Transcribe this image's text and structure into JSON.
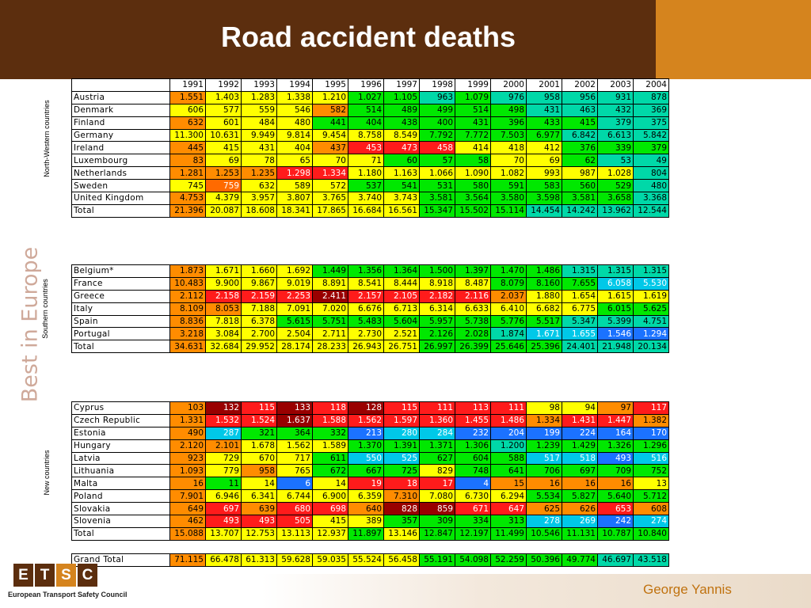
{
  "title": "Road accident deaths",
  "side_text": "Best in Europe",
  "footer": {
    "author": "George Yannis",
    "logo_letters": [
      "E",
      "T",
      "S",
      "C"
    ],
    "logo_caption": "European Transport Safety Council"
  },
  "years": [
    "1991",
    "1992",
    "1993",
    "1994",
    "1995",
    "1996",
    "1997",
    "1998",
    "1999",
    "2000",
    "2001",
    "2002",
    "2003",
    "2004"
  ],
  "groups": [
    {
      "label": "North-Western countries",
      "rows": [
        {
          "name": "Austria",
          "values": [
            "1.551",
            "1.403",
            "1.283",
            "1.338",
            "1.210",
            "1.027",
            "1.105",
            "963",
            "1.079",
            "976",
            "958",
            "956",
            "931",
            "878"
          ],
          "colors": [
            "o",
            "y",
            "y",
            "y",
            "y",
            "g",
            "g",
            "G",
            "g",
            "G",
            "G",
            "G",
            "G",
            "G"
          ]
        },
        {
          "name": "Denmark",
          "values": [
            "606",
            "577",
            "559",
            "546",
            "582",
            "514",
            "489",
            "499",
            "514",
            "498",
            "431",
            "463",
            "432",
            "369"
          ],
          "colors": [
            "y",
            "y",
            "y",
            "y",
            "o",
            "g",
            "g",
            "g",
            "g",
            "g",
            "G",
            "G",
            "G",
            "G"
          ]
        },
        {
          "name": "Finland",
          "values": [
            "632",
            "601",
            "484",
            "480",
            "441",
            "404",
            "438",
            "400",
            "431",
            "396",
            "433",
            "415",
            "379",
            "375"
          ],
          "colors": [
            "o",
            "y",
            "y",
            "y",
            "g",
            "g",
            "g",
            "g",
            "g",
            "g",
            "g",
            "g",
            "G",
            "G"
          ]
        },
        {
          "name": "Germany",
          "values": [
            "11.300",
            "10.631",
            "9.949",
            "9.814",
            "9.454",
            "8.758",
            "8.549",
            "7.792",
            "7.772",
            "7.503",
            "6.977",
            "6.842",
            "6.613",
            "5.842"
          ],
          "colors": [
            "y",
            "y",
            "y",
            "y",
            "y",
            "y",
            "y",
            "g",
            "g",
            "g",
            "g",
            "G",
            "G",
            "G"
          ]
        },
        {
          "name": "Ireland",
          "values": [
            "445",
            "415",
            "431",
            "404",
            "437",
            "453",
            "473",
            "458",
            "414",
            "418",
            "412",
            "376",
            "339",
            "379"
          ],
          "colors": [
            "o",
            "y",
            "y",
            "y",
            "o",
            "R",
            "R",
            "R",
            "y",
            "y",
            "y",
            "g",
            "g",
            "g"
          ]
        },
        {
          "name": "Luxembourg",
          "values": [
            "83",
            "69",
            "78",
            "65",
            "70",
            "71",
            "60",
            "57",
            "58",
            "70",
            "69",
            "62",
            "53",
            "49"
          ],
          "colors": [
            "o",
            "y",
            "y",
            "y",
            "y",
            "y",
            "g",
            "g",
            "g",
            "y",
            "y",
            "g",
            "G",
            "G"
          ]
        },
        {
          "name": "Netherlands",
          "values": [
            "1.281",
            "1.253",
            "1.235",
            "1.298",
            "1.334",
            "1.180",
            "1.163",
            "1.066",
            "1.090",
            "1.082",
            "993",
            "987",
            "1.028",
            "804"
          ],
          "colors": [
            "o",
            "o",
            "o",
            "R",
            "R",
            "y",
            "y",
            "y",
            "y",
            "y",
            "y",
            "y",
            "y",
            "G"
          ]
        },
        {
          "name": "Sweden",
          "values": [
            "745",
            "759",
            "632",
            "589",
            "572",
            "537",
            "541",
            "531",
            "580",
            "591",
            "583",
            "560",
            "529",
            "480"
          ],
          "colors": [
            "y",
            "r",
            "y",
            "y",
            "y",
            "g",
            "g",
            "g",
            "g",
            "g",
            "g",
            "g",
            "g",
            "G"
          ]
        },
        {
          "name": "United Kingdom",
          "values": [
            "4.753",
            "4.379",
            "3.957",
            "3.807",
            "3.765",
            "3.740",
            "3.743",
            "3.581",
            "3.564",
            "3.580",
            "3.598",
            "3.581",
            "3.658",
            "3.368"
          ],
          "colors": [
            "o",
            "y",
            "y",
            "y",
            "y",
            "y",
            "y",
            "g",
            "g",
            "g",
            "g",
            "g",
            "g",
            "G"
          ]
        },
        {
          "name": "Total",
          "values": [
            "21.396",
            "20.087",
            "18.608",
            "18.341",
            "17.865",
            "16.684",
            "16.561",
            "15.347",
            "15.502",
            "15.114",
            "14.454",
            "14.242",
            "13.962",
            "12.544"
          ],
          "colors": [
            "o",
            "y",
            "y",
            "y",
            "y",
            "y",
            "y",
            "g",
            "g",
            "g",
            "G",
            "G",
            "G",
            "G"
          ]
        }
      ]
    },
    {
      "label": "Southern countries",
      "rows": [
        {
          "name": "Belgium*",
          "values": [
            "1.873",
            "1.671",
            "1.660",
            "1.692",
            "1.449",
            "1.356",
            "1.364",
            "1.500",
            "1.397",
            "1.470",
            "1.486",
            "1.315",
            "1.315",
            "1.315"
          ],
          "colors": [
            "o",
            "y",
            "y",
            "y",
            "g",
            "g",
            "g",
            "g",
            "g",
            "g",
            "g",
            "G",
            "G",
            "G"
          ]
        },
        {
          "name": "France",
          "values": [
            "10.483",
            "9.900",
            "9.867",
            "9.019",
            "8.891",
            "8.541",
            "8.444",
            "8.918",
            "8.487",
            "8.079",
            "8.160",
            "7.655",
            "6.058",
            "5.530"
          ],
          "colors": [
            "o",
            "y",
            "y",
            "y",
            "y",
            "y",
            "y",
            "y",
            "y",
            "g",
            "g",
            "g",
            "C",
            "C"
          ]
        },
        {
          "name": "Greece",
          "values": [
            "2.112",
            "2.158",
            "2.159",
            "2.253",
            "2.411",
            "2.157",
            "2.105",
            "2.182",
            "2.116",
            "2.037",
            "1.880",
            "1.654",
            "1.615",
            "1.619"
          ],
          "colors": [
            "o",
            "R",
            "R",
            "R",
            "D",
            "R",
            "R",
            "R",
            "R",
            "o",
            "y",
            "y",
            "y",
            "y"
          ]
        },
        {
          "name": "Italy",
          "values": [
            "8.109",
            "8.053",
            "7.188",
            "7.091",
            "7.020",
            "6.676",
            "6.713",
            "6.314",
            "6.633",
            "6.410",
            "6.682",
            "6.775",
            "6.015",
            "5.625"
          ],
          "colors": [
            "o",
            "o",
            "y",
            "y",
            "y",
            "y",
            "y",
            "y",
            "y",
            "y",
            "y",
            "y",
            "g",
            "g"
          ]
        },
        {
          "name": "Spain",
          "values": [
            "8.836",
            "7.818",
            "6.378",
            "5.615",
            "5.751",
            "5.483",
            "5.604",
            "5.957",
            "5.738",
            "5.776",
            "5.517",
            "5.347",
            "5.399",
            "4.751"
          ],
          "colors": [
            "o",
            "y",
            "y",
            "g",
            "g",
            "g",
            "g",
            "g",
            "g",
            "g",
            "g",
            "G",
            "G",
            "G"
          ]
        },
        {
          "name": "Portugal",
          "values": [
            "3.218",
            "3.084",
            "2.700",
            "2.504",
            "2.711",
            "2.730",
            "2.521",
            "2.126",
            "2.028",
            "1.874",
            "1.671",
            "1.655",
            "1.546",
            "1.294"
          ],
          "colors": [
            "o",
            "y",
            "y",
            "y",
            "y",
            "y",
            "y",
            "g",
            "g",
            "G",
            "C",
            "C",
            "B",
            "B"
          ]
        },
        {
          "name": "Total",
          "values": [
            "34.631",
            "32.684",
            "29.952",
            "28.174",
            "28.233",
            "26.943",
            "26.751",
            "26.997",
            "26.399",
            "25.646",
            "25.396",
            "24.401",
            "21.948",
            "20.134"
          ],
          "colors": [
            "o",
            "y",
            "y",
            "y",
            "y",
            "y",
            "y",
            "g",
            "g",
            "g",
            "g",
            "G",
            "G",
            "G"
          ]
        }
      ]
    },
    {
      "label": "New countries",
      "rows": [
        {
          "name": "Cyprus",
          "values": [
            "103",
            "132",
            "115",
            "133",
            "118",
            "128",
            "115",
            "111",
            "113",
            "111",
            "98",
            "94",
            "97",
            "117"
          ],
          "colors": [
            "o",
            "D",
            "R",
            "D",
            "R",
            "D",
            "R",
            "R",
            "R",
            "R",
            "y",
            "y",
            "o",
            "R"
          ]
        },
        {
          "name": "Czech Republic",
          "values": [
            "1.331",
            "1.532",
            "1.524",
            "1.637",
            "1.588",
            "1.562",
            "1.597",
            "1.360",
            "1.455",
            "1.486",
            "1.334",
            "1.431",
            "1.447",
            "1.382"
          ],
          "colors": [
            "o",
            "R",
            "R",
            "D",
            "R",
            "R",
            "R",
            "R",
            "R",
            "R",
            "o",
            "R",
            "R",
            "o"
          ]
        },
        {
          "name": "Estonia",
          "values": [
            "490",
            "287",
            "321",
            "364",
            "332",
            "213",
            "280",
            "284",
            "232",
            "204",
            "199",
            "224",
            "164",
            "170"
          ],
          "colors": [
            "o",
            "C",
            "g",
            "g",
            "g",
            "B",
            "C",
            "C",
            "B",
            "B",
            "B",
            "B",
            "B",
            "B"
          ]
        },
        {
          "name": "Hungary",
          "values": [
            "2.120",
            "2.101",
            "1.678",
            "1.562",
            "1.589",
            "1.370",
            "1.391",
            "1.371",
            "1.306",
            "1.200",
            "1.239",
            "1.429",
            "1.326",
            "1.296"
          ],
          "colors": [
            "o",
            "o",
            "y",
            "y",
            "y",
            "g",
            "g",
            "g",
            "g",
            "G",
            "g",
            "g",
            "g",
            "g"
          ]
        },
        {
          "name": "Latvia",
          "values": [
            "923",
            "729",
            "670",
            "717",
            "611",
            "550",
            "525",
            "627",
            "604",
            "588",
            "517",
            "518",
            "493",
            "516"
          ],
          "colors": [
            "o",
            "y",
            "y",
            "y",
            "g",
            "C",
            "C",
            "g",
            "g",
            "g",
            "C",
            "C",
            "B",
            "C"
          ]
        },
        {
          "name": "Lithuania",
          "values": [
            "1.093",
            "779",
            "958",
            "765",
            "672",
            "667",
            "725",
            "829",
            "748",
            "641",
            "706",
            "697",
            "709",
            "752"
          ],
          "colors": [
            "o",
            "y",
            "o",
            "y",
            "g",
            "g",
            "g",
            "y",
            "g",
            "g",
            "g",
            "g",
            "g",
            "g"
          ]
        },
        {
          "name": "Malta",
          "values": [
            "16",
            "11",
            "14",
            "6",
            "14",
            "19",
            "18",
            "17",
            "4",
            "15",
            "16",
            "16",
            "16",
            "13"
          ],
          "colors": [
            "o",
            "g",
            "y",
            "B",
            "y",
            "R",
            "R",
            "R",
            "B",
            "o",
            "o",
            "o",
            "o",
            "y"
          ]
        },
        {
          "name": "Poland",
          "values": [
            "7.901",
            "6.946",
            "6.341",
            "6.744",
            "6.900",
            "6.359",
            "7.310",
            "7.080",
            "6.730",
            "6.294",
            "5.534",
            "5.827",
            "5.640",
            "5.712"
          ],
          "colors": [
            "o",
            "y",
            "y",
            "y",
            "y",
            "y",
            "o",
            "y",
            "y",
            "y",
            "g",
            "g",
            "g",
            "g"
          ]
        },
        {
          "name": "Slovakia",
          "values": [
            "649",
            "697",
            "639",
            "680",
            "698",
            "640",
            "828",
            "859",
            "671",
            "647",
            "625",
            "626",
            "653",
            "608"
          ],
          "colors": [
            "o",
            "R",
            "o",
            "R",
            "R",
            "o",
            "D",
            "D",
            "R",
            "R",
            "o",
            "o",
            "R",
            "o"
          ]
        },
        {
          "name": "Slovenia",
          "values": [
            "462",
            "493",
            "493",
            "505",
            "415",
            "389",
            "357",
            "309",
            "334",
            "313",
            "278",
            "269",
            "242",
            "274"
          ],
          "colors": [
            "o",
            "R",
            "R",
            "R",
            "y",
            "y",
            "g",
            "g",
            "g",
            "g",
            "C",
            "C",
            "B",
            "C"
          ]
        },
        {
          "name": "Total",
          "values": [
            "15.088",
            "13.707",
            "12.753",
            "13.113",
            "12.937",
            "11.897",
            "13.146",
            "12.847",
            "12.197",
            "11.499",
            "10.546",
            "11.131",
            "10.787",
            "10.840"
          ],
          "colors": [
            "o",
            "y",
            "y",
            "y",
            "y",
            "g",
            "y",
            "g",
            "g",
            "g",
            "g",
            "g",
            "g",
            "g"
          ]
        }
      ]
    },
    {
      "label": "",
      "rows": [
        {
          "name": "Grand Total",
          "values": [
            "71.115",
            "66.478",
            "61.313",
            "59.628",
            "59.035",
            "55.524",
            "56.458",
            "55.191",
            "54.098",
            "52.259",
            "50.396",
            "49.774",
            "46.697",
            "43.518"
          ],
          "colors": [
            "o",
            "y",
            "y",
            "y",
            "y",
            "y",
            "y",
            "g",
            "g",
            "g",
            "g",
            "g",
            "G",
            "G"
          ]
        }
      ]
    }
  ],
  "palette": {
    "o": {
      "bg": "#ff8c00",
      "fg": "#000000"
    },
    "y": {
      "bg": "#ffff00",
      "fg": "#000000"
    },
    "g": {
      "bg": "#00e800",
      "fg": "#000000"
    },
    "G": {
      "bg": "#00d8a8",
      "fg": "#000000"
    },
    "C": {
      "bg": "#00c8e8",
      "fg": "#ffffff"
    },
    "B": {
      "bg": "#1b72ff",
      "fg": "#ffffff"
    },
    "r": {
      "bg": "#ff6a00",
      "fg": "#ffffff"
    },
    "R": {
      "bg": "#ff1b1b",
      "fg": "#ffffff"
    },
    "D": {
      "bg": "#990000",
      "fg": "#ffffff"
    }
  }
}
